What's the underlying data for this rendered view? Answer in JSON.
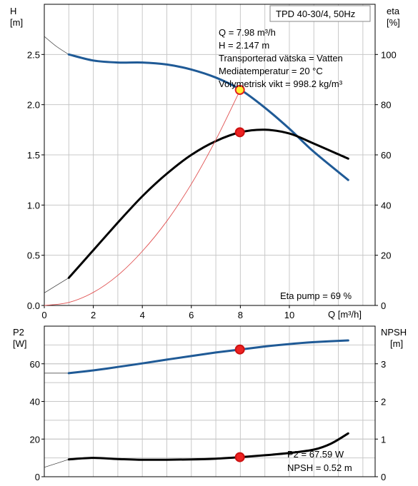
{
  "chart_data": [
    {
      "type": "line",
      "title": "TPD 40-30/4, 50Hz",
      "left_axis": {
        "label_line1": "H",
        "label_line2": "[m]",
        "range": [
          0,
          3.0
        ],
        "ticks": [
          "0.0",
          "0.5",
          "1.0",
          "1.5",
          "2.0",
          "2.5"
        ]
      },
      "right_axis": {
        "label_line1": "eta",
        "label_line2": "[%]",
        "range": [
          0,
          120
        ],
        "ticks": [
          "0",
          "20",
          "40",
          "60",
          "80",
          "100"
        ]
      },
      "x_axis": {
        "label": "Q [m³/h]",
        "range": [
          0,
          13.5
        ],
        "ticks": [
          "0",
          "2",
          "4",
          "6",
          "8",
          "10"
        ]
      },
      "grid": true,
      "info": [
        "Q = 7.98 m³/h",
        "H = 2.147 m",
        "Transporterad vätska = Vatten",
        "Mediatemperatur = 20 °C",
        "Volymetrisk vikt = 998.2 kg/m³"
      ],
      "annotation": "Eta pump = 69 %",
      "series": [
        {
          "axis": "H",
          "color": "#1f5a96",
          "x": [
            0,
            0.5,
            1,
            2,
            3,
            4,
            5,
            6,
            7,
            8,
            9,
            10,
            11,
            12.4
          ],
          "y": [
            2.68,
            2.58,
            2.5,
            2.44,
            2.42,
            2.42,
            2.4,
            2.35,
            2.27,
            2.15,
            1.97,
            1.76,
            1.53,
            1.25
          ],
          "thin_until": 1
        },
        {
          "axis": "eta",
          "color": "#000000",
          "x": [
            0,
            1,
            2,
            3,
            4,
            5,
            6,
            7,
            8,
            9,
            10,
            11,
            12.4
          ],
          "y": [
            5,
            11,
            22,
            33,
            43.5,
            52.5,
            60,
            65.5,
            69,
            70,
            68.5,
            64.5,
            58.5
          ],
          "thin_until": 1
        },
        {
          "axis": "H",
          "color": "#e05050",
          "x": [
            0,
            1,
            2,
            3,
            4,
            5,
            6,
            7,
            8
          ],
          "y": [
            0,
            0.03,
            0.13,
            0.3,
            0.54,
            0.84,
            1.21,
            1.65,
            2.15
          ]
        }
      ],
      "markers": [
        {
          "axis": "H",
          "x": 7.98,
          "y": 2.147,
          "fill": "#ffee33",
          "stroke": "#e02020"
        },
        {
          "axis": "eta",
          "x": 7.98,
          "y": 69,
          "fill": "#ee2222",
          "stroke": "#cc1111"
        }
      ]
    },
    {
      "type": "line",
      "left_axis": {
        "label_line1": "P2",
        "label_line2": "[W]",
        "range": [
          0,
          80
        ],
        "ticks": [
          "0",
          "20",
          "40",
          "60"
        ]
      },
      "right_axis": {
        "label_line1": "NPSH",
        "label_line2": "[m]",
        "range": [
          0,
          4
        ],
        "ticks": [
          "0",
          "1",
          "2",
          "3"
        ]
      },
      "x_axis": {
        "range": [
          0,
          13.5
        ]
      },
      "grid": true,
      "info": [
        "P2 = 67.59 W",
        "NPSH = 0.52 m"
      ],
      "series": [
        {
          "axis": "P2",
          "color": "#1f5a96",
          "x": [
            0,
            1,
            2,
            3,
            4,
            5,
            6,
            7,
            8,
            9,
            10,
            11,
            12.4
          ],
          "y": [
            55,
            55,
            56.5,
            58.3,
            60.2,
            62.2,
            64.1,
            66,
            67.6,
            69.2,
            70.5,
            71.5,
            72.4
          ],
          "thin_until": 1
        },
        {
          "axis": "NPSH",
          "color": "#000000",
          "x": [
            0,
            1,
            2,
            3,
            4,
            5,
            6,
            7,
            8,
            9,
            10,
            11,
            11.7,
            12.4
          ],
          "y": [
            0.25,
            0.46,
            0.5,
            0.47,
            0.45,
            0.45,
            0.46,
            0.48,
            0.52,
            0.57,
            0.63,
            0.72,
            0.88,
            1.15
          ],
          "thin_until": 1
        }
      ],
      "markers": [
        {
          "axis": "P2",
          "x": 7.98,
          "y": 67.59,
          "fill": "#ee2222",
          "stroke": "#cc1111"
        },
        {
          "axis": "NPSH",
          "x": 7.98,
          "y": 0.52,
          "fill": "#ee2222",
          "stroke": "#cc1111"
        }
      ]
    }
  ]
}
